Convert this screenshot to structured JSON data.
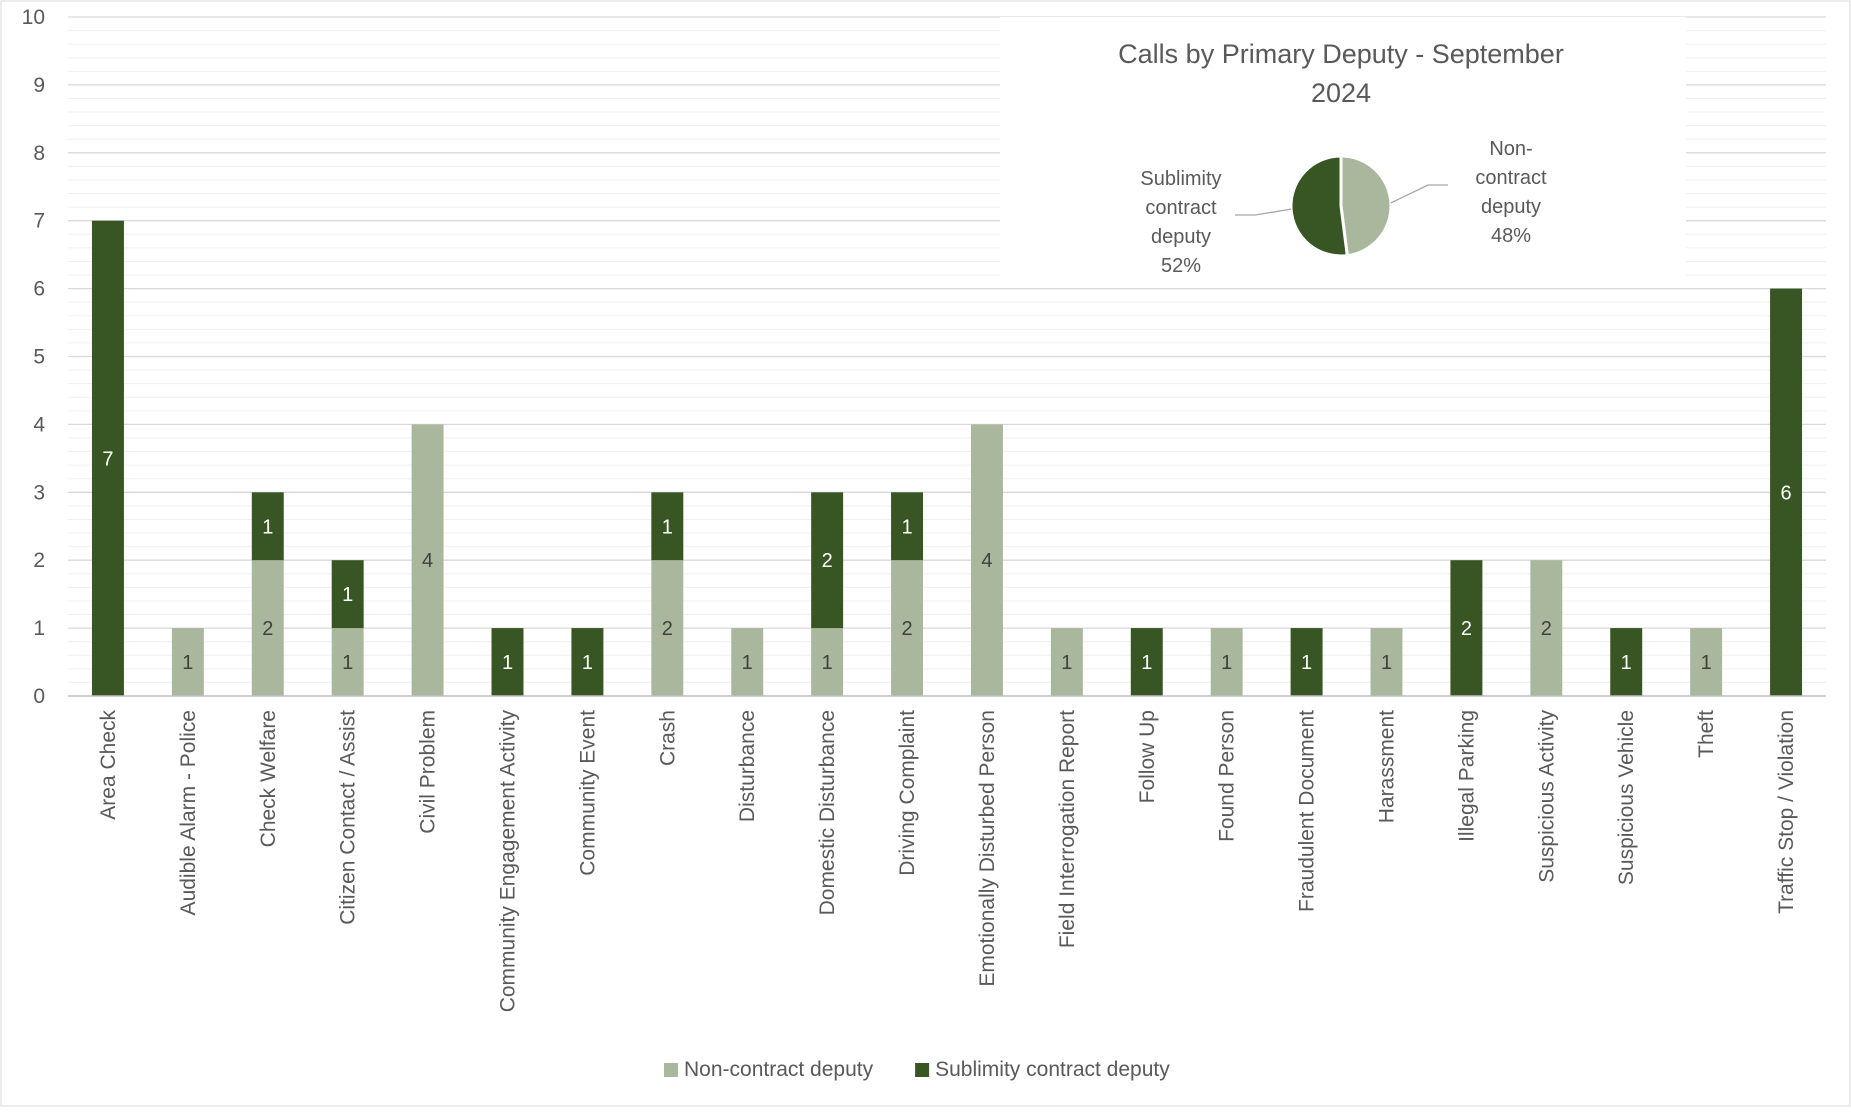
{
  "chart_data": [
    {
      "type": "bar",
      "stacked": true,
      "title": "",
      "xlabel": "",
      "ylabel": "",
      "ylim": [
        0,
        10
      ],
      "yticks": [
        0,
        1,
        2,
        3,
        4,
        5,
        6,
        7,
        8,
        9,
        10
      ],
      "grid": true,
      "legend_position": "bottom",
      "categories": [
        "Area Check",
        "Audible Alarm - Police",
        "Check Welfare",
        "Citizen Contact / Assist",
        "Civil Problem",
        "Community Engagement Activity",
        "Community Event",
        "Crash",
        "Disturbance",
        "Domestic Disturbance",
        "Driving Complaint",
        "Emotionally Disturbed Person",
        "Field Interrogation Report",
        "Follow Up",
        "Found Person",
        "Fraudulent Document",
        "Harassment",
        "Illegal Parking",
        "Suspicious Activity",
        "Suspicious Vehicle",
        "Theft",
        "Traffic Stop / Violation"
      ],
      "series": [
        {
          "name": "Non-contract deputy",
          "color": "#a9b89d",
          "label_color": "#404040",
          "values": [
            0,
            1,
            2,
            1,
            4,
            0,
            0,
            2,
            1,
            1,
            2,
            4,
            1,
            0,
            1,
            0,
            1,
            0,
            2,
            0,
            1,
            0
          ]
        },
        {
          "name": "Sublimity contract deputy",
          "color": "#375623",
          "label_color": "#ffffff",
          "values": [
            7,
            0,
            1,
            1,
            0,
            1,
            1,
            1,
            0,
            2,
            1,
            0,
            0,
            1,
            0,
            1,
            0,
            2,
            0,
            1,
            0,
            6
          ]
        }
      ]
    },
    {
      "type": "pie",
      "title": "Calls by Primary Deputy - September 2024",
      "title_lines": [
        "Calls by Primary Deputy - September",
        "2024"
      ],
      "slices": [
        {
          "name": "Non-contract deputy",
          "value": 48,
          "label_lines": [
            "Non-",
            "contract",
            "deputy",
            "48%"
          ],
          "color": "#a9b89d"
        },
        {
          "name": "Sublimity contract deputy",
          "value": 52,
          "label_lines": [
            "Sublimity",
            "contract",
            "deputy",
            "52%"
          ],
          "color": "#375623"
        }
      ]
    }
  ]
}
